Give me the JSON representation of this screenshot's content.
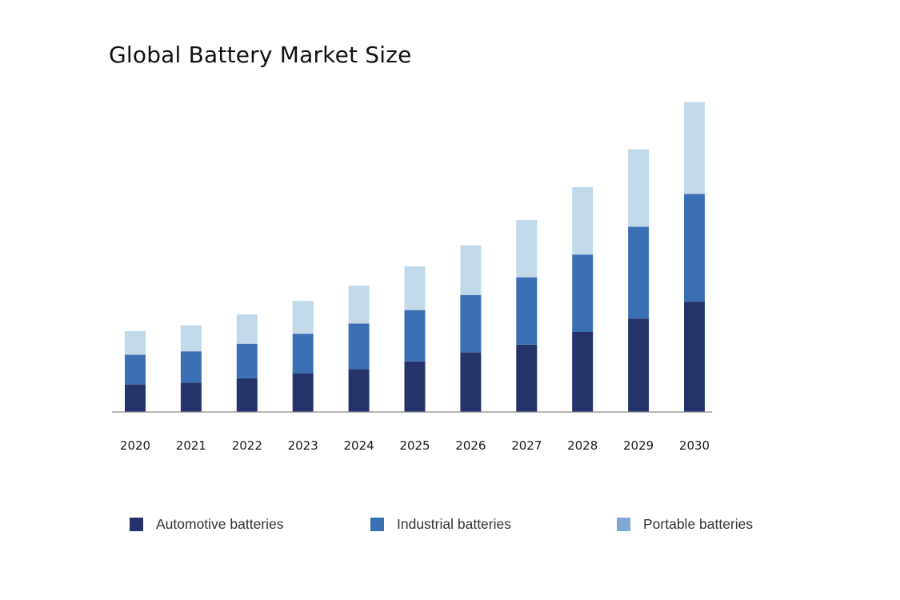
{
  "chart_data": {
    "type": "bar",
    "stacked": true,
    "title": "Global Battery Market Size",
    "xlabel": "",
    "ylabel": "",
    "categories": [
      "2020",
      "2021",
      "2022",
      "2023",
      "2024",
      "2025",
      "2026",
      "2027",
      "2028",
      "2029",
      "2030"
    ],
    "series": [
      {
        "name": "Automotive batteries",
        "color": "#25336a",
        "values": [
          33,
          35,
          40,
          46,
          51,
          60,
          71,
          80,
          95,
          111,
          131
        ]
      },
      {
        "name": "Industrial batteries",
        "color": "#3a70b3",
        "values": [
          35,
          37,
          41,
          47,
          54,
          61,
          68,
          80,
          92,
          109,
          128
        ]
      },
      {
        "name": "Portable batteries",
        "color": "#c2d9ea",
        "values": [
          28,
          31,
          35,
          39,
          45,
          52,
          59,
          68,
          80,
          92,
          109
        ]
      }
    ],
    "legend_position": "bottom",
    "grid": false,
    "yaxis_visible": false,
    "ylim": [
      0,
      380
    ]
  },
  "legend_items": [
    {
      "label": "Automotive batteries",
      "color": "#25336a"
    },
    {
      "label": "Industrial batteries",
      "color": "#3a70b3"
    },
    {
      "label": "Portable batteries",
      "color": "#7fa9d4"
    }
  ]
}
